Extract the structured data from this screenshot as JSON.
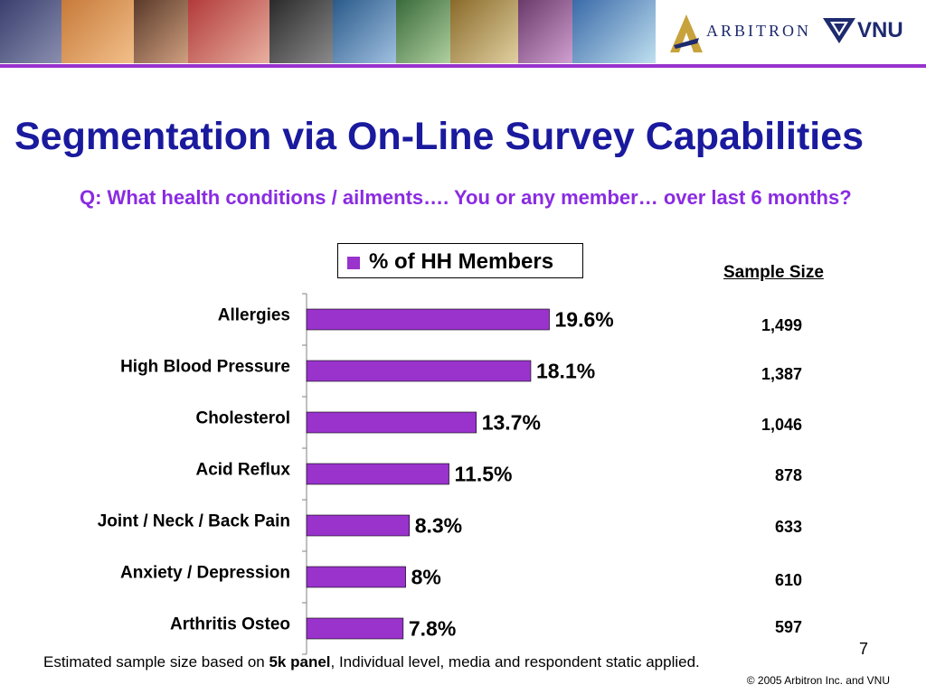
{
  "header": {
    "logos": [
      "ARBITRON",
      "VNU"
    ],
    "colors": {
      "accent": "#9933cc",
      "title": "#1a1a9e",
      "question": "#8a2be2"
    }
  },
  "title": "Segmentation via On-Line Survey Capabilities",
  "question": "Q:  What health conditions / ailments…. You or any member… over last 6 months?",
  "legend_label": "% of HH Members",
  "sample_size_header": "Sample Size",
  "chart_data": {
    "type": "bar",
    "orientation": "horizontal",
    "categories": [
      "Allergies",
      "High Blood Pressure",
      "Cholesterol",
      "Acid Reflux",
      "Joint / Neck / Back Pain",
      "Anxiety / Depression",
      "Arthritis Osteo"
    ],
    "series": [
      {
        "name": "% of HH Members",
        "values": [
          19.6,
          18.1,
          13.7,
          11.5,
          8.3,
          8.0,
          7.8
        ],
        "labels": [
          "19.6%",
          "18.1%",
          "13.7%",
          "11.5%",
          "8.3%",
          "8%",
          "7.8%"
        ],
        "color": "#9933cc"
      }
    ],
    "legend": "top"
  },
  "sample_sizes": [
    "1,499",
    "1,387",
    "1,046",
    "878",
    "633",
    "610",
    "597"
  ],
  "footnote": {
    "pre": "Estimated sample size based on ",
    "bold": "5k panel",
    "post": ", Individual level, media and respondent  static applied."
  },
  "page_number": "7",
  "copyright": "© 2005 Arbitron Inc. and VNU"
}
